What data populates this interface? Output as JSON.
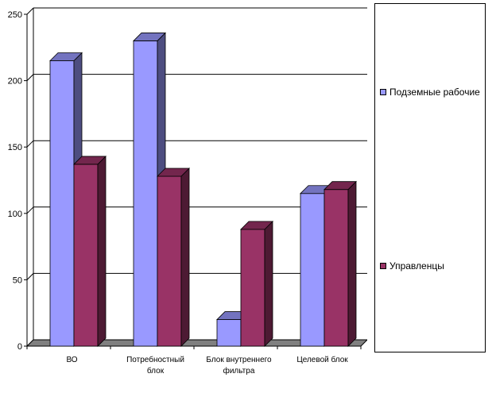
{
  "chart_data": {
    "type": "bar",
    "categories": [
      "ВО",
      "Потребностный блок",
      "Блок внутреннего фильтра",
      "Целевой блок"
    ],
    "category_lines": [
      [
        "ВО"
      ],
      [
        "Потребностный",
        "блок"
      ],
      [
        "Блок внутреннего",
        "фильтра"
      ],
      [
        "Целевой блок"
      ]
    ],
    "series": [
      {
        "name": "Подземные рабочие",
        "values": [
          215,
          230,
          20,
          115
        ],
        "color": "#9999ff",
        "side_color": "#4d4d80",
        "top_color": "#7373bf"
      },
      {
        "name": "Управленцы",
        "values": [
          137,
          128,
          88,
          118
        ],
        "color": "#993366",
        "side_color": "#4d1a33",
        "top_color": "#73264d"
      }
    ],
    "y_ticks": [
      0,
      50,
      100,
      150,
      200,
      250
    ],
    "ylim": [
      0,
      250
    ],
    "grid": true,
    "legend_position": "right",
    "title": "",
    "xlabel": "",
    "ylabel": ""
  }
}
